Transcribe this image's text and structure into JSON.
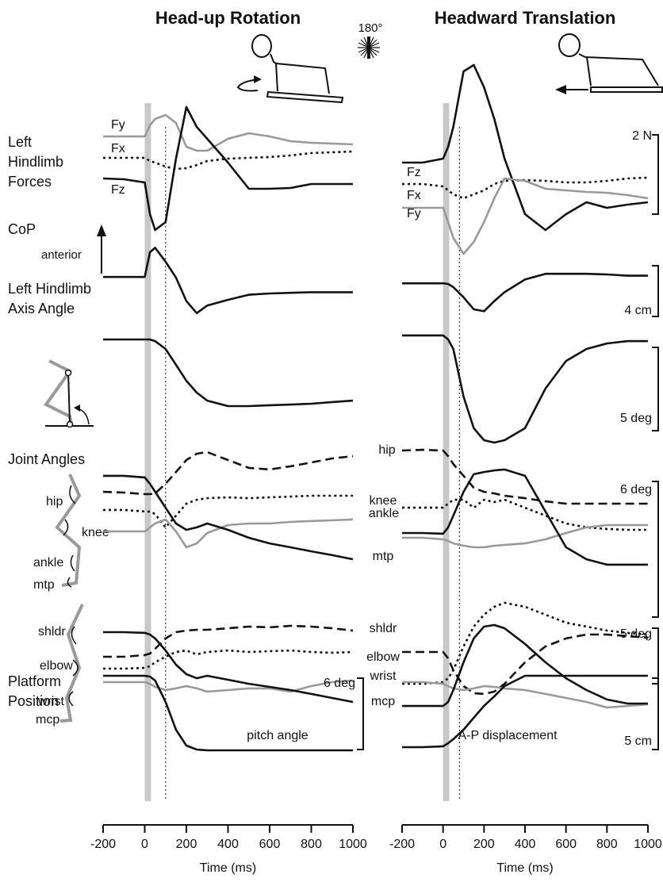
{
  "chart_data": [
    {
      "type": "line",
      "title": "Head-up Rotation",
      "xlabel": "Time (ms)",
      "xlim": [
        -200,
        1000
      ],
      "xticks": [
        -200,
        0,
        200,
        400,
        600,
        800,
        1000
      ],
      "onset_band": [
        0,
        30
      ],
      "marker": 100,
      "x": [
        -200,
        -100,
        0,
        25,
        50,
        100,
        150,
        200,
        250,
        300,
        400,
        500,
        600,
        700,
        800,
        900,
        1000
      ],
      "rows": [
        {
          "label": [
            "Left",
            "Hindlimb",
            "Forces"
          ],
          "ylim": [
            -2.6,
            2.5
          ],
          "series": [
            {
              "name": "Fy",
              "color": "#999999",
              "dash": "solid",
              "values": [
                0.56,
                0.56,
                0.56,
                0.84,
                1,
                1.1,
                0.9,
                0.3,
                0.2,
                0.2,
                0.5,
                0.64,
                0.56,
                0.44,
                0.4,
                0.38,
                0.36
              ]
            },
            {
              "name": "Fx",
              "color": "#111111",
              "dash": "dotted",
              "values": [
                0.02,
                0.02,
                0.02,
                -0.06,
                -0.1,
                -0.2,
                -0.26,
                -0.24,
                -0.16,
                -0.06,
                0,
                0.02,
                0.04,
                0.08,
                0.14,
                0.16,
                0.18
              ]
            },
            {
              "name": "Fz",
              "color": "#111111",
              "dash": "solid",
              "values": [
                -0.5,
                -0.52,
                -0.6,
                -1.4,
                -1.8,
                -1.6,
                0,
                1.3,
                0.8,
                0.5,
                -0.1,
                -0.76,
                -0.76,
                -0.74,
                -0.64,
                -0.64,
                -0.64
              ]
            }
          ]
        },
        {
          "label": [
            "CoP"
          ],
          "ylim": [
            0,
            7.5
          ],
          "series": [
            {
              "color": "#111111",
              "dash": "solid",
              "values": [
                3.8,
                3.8,
                3.8,
                5.75,
                6.1,
                5,
                3.75,
                1.9,
                0.95,
                1.55,
                2,
                2.4,
                2.5,
                2.55,
                2.6,
                2.6,
                2.6
              ]
            }
          ]
        },
        {
          "label": [
            "Left Hindlimb",
            "Axis Angle"
          ],
          "ylim": [
            0,
            7
          ],
          "series": [
            {
              "color": "#111111",
              "dash": "solid",
              "values": [
                6.62,
                6.62,
                6.62,
                6.62,
                6.52,
                6.05,
                5.1,
                4.14,
                3.43,
                2.95,
                2.62,
                2.62,
                2.67,
                2.71,
                2.76,
                2.86,
                2.95
              ]
            }
          ]
        },
        {
          "label": [
            "Joint Angles"
          ],
          "ylim": [
            0,
            8
          ],
          "series": [
            {
              "name": "hip",
              "color": "#111111",
              "dash": "dashed",
              "values": [
                5.96,
                5.93,
                5.86,
                5.86,
                5.89,
                6.32,
                6.84,
                7.37,
                7.65,
                7.72,
                7.37,
                7.02,
                6.95,
                7.09,
                7.26,
                7.44,
                7.54
              ]
            },
            {
              "name": "knee",
              "color": "#111111",
              "dash": "dotted",
              "values": [
                5.16,
                5.16,
                5.09,
                5.09,
                4.98,
                4.39,
                4.91,
                5.44,
                5.61,
                5.68,
                5.72,
                5.68,
                5.72,
                5.75,
                5.79,
                5.79,
                5.79
              ]
            },
            {
              "name": "ankle",
              "color": "#999999",
              "dash": "solid",
              "values": [
                4.21,
                4.21,
                4.21,
                4.39,
                4.56,
                4.74,
                4.21,
                3.51,
                3.68,
                4.14,
                4.49,
                4.56,
                4.56,
                4.63,
                4.67,
                4.7,
                4.74
              ]
            },
            {
              "name": "mtp",
              "color": "#111111",
              "dash": "solid",
              "values": [
                6.67,
                6.67,
                6.6,
                6.32,
                5.96,
                5.26,
                4.56,
                4.28,
                4.39,
                4.56,
                4.28,
                3.93,
                3.68,
                3.51,
                3.33,
                3.16,
                2.98
              ]
            }
          ]
        },
        {
          "ylim": [
            0,
            10.5
          ],
          "series": [
            {
              "name": "shldr",
              "color": "#111111",
              "dash": "dashed",
              "values": [
                5.14,
                5.14,
                5.29,
                5.43,
                5.86,
                6.79,
                7.36,
                7.5,
                7.57,
                7.57,
                7.71,
                7.86,
                7.79,
                7.93,
                7.86,
                7.71,
                7.5
              ]
            },
            {
              "name": "elbow",
              "color": "#111111",
              "dash": "dotted",
              "values": [
                4.07,
                4.07,
                4.14,
                4.29,
                4.64,
                5.14,
                5.57,
                5.71,
                5.36,
                5.57,
                5.71,
                5.57,
                5.64,
                5.71,
                5.57,
                5.5,
                5.57
              ]
            },
            {
              "name": "wrist",
              "color": "#999999",
              "dash": "solid",
              "values": [
                2.86,
                2.86,
                2.86,
                2.71,
                2.43,
                2.14,
                2.29,
                2.5,
                2.29,
                2,
                2.14,
                2.29,
                2.29,
                2,
                2.5,
                2.86,
                3
              ]
            },
            {
              "name": "mcp",
              "color": "#111111",
              "dash": "solid",
              "values": [
                7.36,
                7.36,
                7.29,
                7.14,
                6.79,
                5.71,
                4.43,
                3.57,
                3.21,
                3.43,
                3.07,
                2.71,
                2.43,
                2.14,
                1.79,
                1.43,
                1.07
              ]
            }
          ]
        },
        {
          "label": [
            "Platform",
            "Position"
          ],
          "annotation": "pitch angle",
          "ylim": [
            0,
            8
          ],
          "scale_bar": {
            "value": 6,
            "label": "6 deg"
          },
          "series": [
            {
              "color": "#111111",
              "dash": "solid",
              "values": [
                7.2,
                7.2,
                7.2,
                7.13,
                6.8,
                5,
                2.67,
                1.33,
                1,
                0.93,
                0.93,
                0.93,
                0.93,
                0.93,
                0.93,
                0.93,
                0.93
              ]
            }
          ]
        }
      ]
    },
    {
      "type": "line",
      "title": "Headward Translation",
      "xlabel": "Time (ms)",
      "xlim": [
        -200,
        1000
      ],
      "xticks": [
        -200,
        0,
        200,
        400,
        600,
        800,
        1000
      ],
      "onset_band": [
        0,
        30
      ],
      "marker": 80,
      "x": [
        -200,
        -100,
        0,
        25,
        50,
        100,
        150,
        200,
        250,
        300,
        400,
        500,
        600,
        700,
        800,
        900,
        1000
      ],
      "rows": [
        {
          "ylim": [
            -2.6,
            2.5
          ],
          "scale_bar": {
            "value": 2,
            "label": "2 N"
          },
          "series": [
            {
              "name": "Fz",
              "color": "#111111",
              "dash": "solid",
              "values": [
                -0.1,
                -0.1,
                0,
                0.3,
                0.8,
                2.2,
                2.36,
                1.8,
                1,
                0,
                -1.4,
                -1.8,
                -1.4,
                -1.1,
                -1.24,
                -1.16,
                -1.1
              ]
            },
            {
              "name": "Fx",
              "color": "#111111",
              "dash": "dotted",
              "values": [
                -0.64,
                -0.64,
                -0.7,
                -0.8,
                -0.9,
                -1,
                -0.9,
                -0.8,
                -0.64,
                -0.56,
                -0.54,
                -0.56,
                -0.6,
                -0.6,
                -0.56,
                -0.5,
                -0.48
              ]
            },
            {
              "name": "Fy",
              "color": "#999999",
              "dash": "solid",
              "values": [
                -1.24,
                -1.24,
                -1.24,
                -1.6,
                -2,
                -2.4,
                -2.1,
                -1.6,
                -1,
                -0.5,
                -0.56,
                -0.76,
                -0.8,
                -0.84,
                -0.86,
                -0.92,
                -1
              ]
            }
          ]
        },
        {
          "ylim": [
            0,
            7.5
          ],
          "scale_bar": {
            "value": 4,
            "label": "4 cm"
          },
          "series": [
            {
              "color": "#111111",
              "dash": "solid",
              "values": [
                3.3,
                3.3,
                3.3,
                3.25,
                3,
                2.2,
                1.25,
                1.1,
                1.9,
                2.6,
                3.6,
                4.05,
                4.05,
                4.05,
                4,
                3.9,
                3.9
              ]
            }
          ]
        },
        {
          "ylim": [
            0,
            7
          ],
          "scale_bar": {
            "value": 5,
            "label": "5 deg"
          },
          "series": [
            {
              "color": "#111111",
              "dash": "solid",
              "values": [
                6.86,
                6.86,
                6.86,
                6.62,
                6.05,
                3.19,
                1.29,
                0.57,
                0.43,
                0.57,
                1.29,
                3.67,
                5.33,
                6.05,
                6.38,
                6.52,
                6.52
              ]
            }
          ]
        },
        {
          "ylim": [
            0,
            8
          ],
          "scale_bar": {
            "value": 6,
            "label": "6 deg"
          },
          "series": [
            {
              "name": "hip",
              "color": "#111111",
              "dash": "dashed",
              "values": [
                7.79,
                7.82,
                7.79,
                7.54,
                7.19,
                6.67,
                6.14,
                5.96,
                5.89,
                5.79,
                5.68,
                5.54,
                5.44,
                5.44,
                5.44,
                5.44,
                5.44
              ]
            },
            {
              "name": "knee",
              "color": "#111111",
              "dash": "dotted",
              "values": [
                5.26,
                5.26,
                5.26,
                5.44,
                5.61,
                5.61,
                5.26,
                5.61,
                5.51,
                5.61,
                5.26,
                4.91,
                4.56,
                4.39,
                4.32,
                4.28,
                4.28
              ]
            },
            {
              "name": "ankle",
              "color": "#999999",
              "dash": "solid",
              "values": [
                3.93,
                3.93,
                3.86,
                3.79,
                3.68,
                3.58,
                3.51,
                3.51,
                3.58,
                3.61,
                3.68,
                3.86,
                4.14,
                4.39,
                4.49,
                4.49,
                4.49
              ]
            },
            {
              "name": "mtp",
              "color": "#111111",
              "dash": "solid",
              "values": [
                4.14,
                4.14,
                4.11,
                4.39,
                4.91,
                5.96,
                6.74,
                6.84,
                6.91,
                6.95,
                6.67,
                5.09,
                3.51,
                2.98,
                2.74,
                2.74,
                2.74
              ]
            }
          ]
        },
        {
          "ylim": [
            0,
            10.5
          ],
          "scale_bar": {
            "value": 5,
            "label": "5 deg"
          },
          "series": [
            {
              "name": "shldr",
              "color": "#111111",
              "dash": "dashed",
              "values": [
                5.57,
                5.57,
                5.57,
                5,
                3.93,
                2.5,
                1.86,
                1.79,
                2,
                2.71,
                4.64,
                6.07,
                6.79,
                7.14,
                7.14,
                7,
                6.86
              ]
            },
            {
              "name": "elbow",
              "color": "#111111",
              "dash": "dotted",
              "values": [
                2.71,
                2.71,
                2.86,
                3.21,
                3.93,
                6.07,
                7.86,
                8.93,
                9.64,
                10,
                9.64,
                8.93,
                8.21,
                7.86,
                7.5,
                7.29,
                7.14
              ]
            },
            {
              "name": "wrist",
              "color": "#999999",
              "dash": "solid",
              "values": [
                2.86,
                2.86,
                2.71,
                2.5,
                2.29,
                2.14,
                2.29,
                2.5,
                2.43,
                2.29,
                2.14,
                1.79,
                1.43,
                1.07,
                0.57,
                0.71,
                0.86
              ]
            },
            {
              "name": "mcp",
              "color": "#111111",
              "dash": "solid",
              "values": [
                0.71,
                0.71,
                0.71,
                1.07,
                2.14,
                4.64,
                6.79,
                7.86,
                8,
                7.71,
                6.29,
                4.64,
                3.21,
                2.14,
                1.29,
                0.93,
                0.93
              ]
            }
          ]
        },
        {
          "annotation": "A-P displacement",
          "ylim": [
            0,
            6
          ],
          "scale_bar": {
            "value": 5,
            "label": "5 cm"
          },
          "series": [
            {
              "color": "#111111",
              "dash": "solid",
              "values": [
                1,
                1,
                1.06,
                1.28,
                1.56,
                2.22,
                3.06,
                3.89,
                4.56,
                5.28,
                6,
                6,
                6,
                6,
                6,
                6,
                6
              ]
            }
          ]
        }
      ]
    }
  ],
  "annotations": {
    "anterior": "anterior",
    "rotation": "180°"
  }
}
